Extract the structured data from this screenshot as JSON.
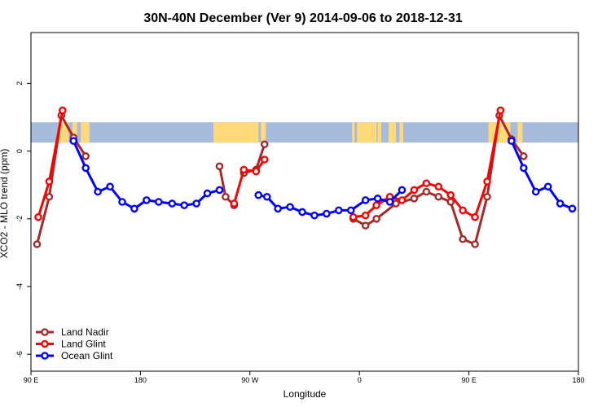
{
  "colors": {
    "band_ocean": "#a7bcdc",
    "band_land": "#ffd97a"
  },
  "chart_data": {
    "type": "line",
    "title": "30N-40N December (Ver 9)   2014-09-06 to 2018-12-31",
    "xlabel": "Longitude",
    "ylabel": "XCO2 - MLO trend (ppm)",
    "x_domain": [
      90,
      540
    ],
    "xlim": [
      90,
      540
    ],
    "ylim": [
      -6.5,
      3.5
    ],
    "x_ticks": [
      {
        "value": 90,
        "label": "90 E"
      },
      {
        "value": 180,
        "label": "180"
      },
      {
        "value": 270,
        "label": "90 W"
      },
      {
        "value": 360,
        "label": "0"
      },
      {
        "value": 450,
        "label": "90 E"
      },
      {
        "value": 540,
        "label": "180"
      }
    ],
    "y_ticks": [
      {
        "value": 2,
        "label": "2"
      },
      {
        "value": 0,
        "label": "0"
      },
      {
        "value": -2,
        "label": "-2"
      },
      {
        "value": -4,
        "label": "-4"
      },
      {
        "value": -6,
        "label": "-6"
      }
    ],
    "legend_position": "bottom-left",
    "grid": false,
    "series": [
      {
        "name": "Land Nadir",
        "color": "#a52a2a",
        "segments": [
          [
            [
              95,
              -2.75
            ],
            [
              105,
              -1.35
            ],
            [
              115,
              1.05
            ],
            [
              125,
              0.4
            ],
            [
              135,
              -0.15
            ]
          ],
          [
            [
              245,
              -0.45
            ],
            [
              250,
              -1.35
            ],
            [
              257,
              -1.6
            ]
          ],
          [
            [
              265,
              -0.65
            ],
            [
              275,
              -0.55
            ],
            [
              282,
              0.2
            ]
          ],
          [
            [
              355,
              -2.0
            ],
            [
              365,
              -2.2
            ],
            [
              374,
              -2.0
            ],
            [
              390,
              -1.55
            ],
            [
              405,
              -1.4
            ],
            [
              415,
              -1.2
            ],
            [
              425,
              -1.35
            ],
            [
              435,
              -1.5
            ],
            [
              445,
              -2.6
            ],
            [
              455,
              -2.75
            ],
            [
              465,
              -1.35
            ],
            [
              475,
              1.05
            ],
            [
              485,
              0.35
            ],
            [
              495,
              -0.15
            ]
          ]
        ]
      },
      {
        "name": "Land Glint",
        "color": "#ff0000",
        "segments": [
          [
            [
              96,
              -1.95
            ],
            [
              105,
              -0.9
            ],
            [
              116,
              1.2
            ]
          ],
          [
            [
              257,
              -1.55
            ],
            [
              265,
              -0.55
            ],
            [
              275,
              -0.6
            ],
            [
              282,
              -0.25
            ]
          ],
          [
            [
              355,
              -1.95
            ],
            [
              365,
              -1.9
            ],
            [
              374,
              -1.6
            ],
            [
              385,
              -1.35
            ],
            [
              395,
              -1.45
            ],
            [
              405,
              -1.15
            ],
            [
              415,
              -0.95
            ],
            [
              425,
              -1.05
            ],
            [
              435,
              -1.3
            ],
            [
              445,
              -1.75
            ],
            [
              455,
              -1.95
            ],
            [
              465,
              -0.9
            ],
            [
              476,
              1.2
            ]
          ]
        ]
      },
      {
        "name": "Ocean Glint",
        "color": "#0000ff",
        "segments": [
          [
            [
              125,
              0.3
            ],
            [
              135,
              -0.5
            ],
            [
              145,
              -1.2
            ],
            [
              155,
              -1.05
            ],
            [
              165,
              -1.5
            ],
            [
              175,
              -1.7
            ],
            [
              185,
              -1.45
            ],
            [
              195,
              -1.5
            ],
            [
              206,
              -1.55
            ],
            [
              216,
              -1.6
            ],
            [
              226,
              -1.55
            ],
            [
              235,
              -1.25
            ],
            [
              245,
              -1.15
            ]
          ],
          [
            [
              277,
              -1.3
            ],
            [
              284,
              -1.35
            ],
            [
              293,
              -1.7
            ],
            [
              303,
              -1.65
            ],
            [
              313,
              -1.8
            ],
            [
              323,
              -1.9
            ],
            [
              333,
              -1.85
            ],
            [
              343,
              -1.75
            ],
            [
              353,
              -1.75
            ],
            [
              365,
              -1.45
            ],
            [
              375,
              -1.4
            ],
            [
              385,
              -1.5
            ],
            [
              395,
              -1.15
            ]
          ],
          [
            [
              485,
              0.3
            ],
            [
              495,
              -0.5
            ],
            [
              505,
              -1.2
            ],
            [
              515,
              -1.05
            ],
            [
              525,
              -1.55
            ],
            [
              535,
              -1.7
            ]
          ]
        ]
      }
    ],
    "map_band": {
      "y_range": [
        0.25,
        0.85
      ],
      "land_ranges": [
        [
          113,
          121
        ],
        [
          124,
          128
        ],
        [
          131,
          138
        ],
        [
          240,
          277
        ],
        [
          279,
          283
        ],
        [
          354,
          356
        ],
        [
          358,
          374
        ],
        [
          375,
          378
        ],
        [
          384,
          390
        ],
        [
          393,
          396
        ],
        [
          466,
          484
        ],
        [
          490,
          494
        ]
      ]
    }
  }
}
